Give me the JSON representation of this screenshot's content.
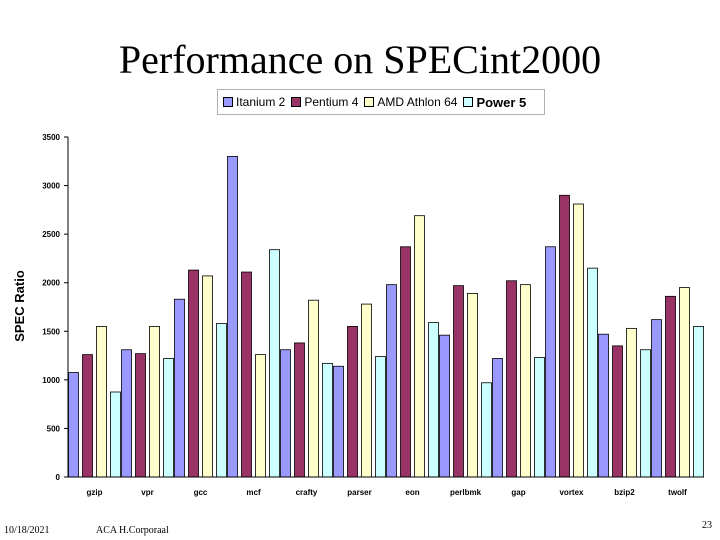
{
  "slide": {
    "title": "Performance on SPECint2000",
    "footer_date": "10/18/2021",
    "footer_author": "ACA H.Corporaal",
    "page_number": "23"
  },
  "chart_data": {
    "type": "bar",
    "ylabel": "SPEC Ratio",
    "ylim": [
      0,
      3500
    ],
    "yticks": [
      "0",
      "500",
      "1000",
      "1500",
      "2000",
      "2500",
      "3000",
      "3500"
    ],
    "grid": false,
    "legend_position": "top",
    "categories": [
      "gzip",
      "vpr",
      "gcc",
      "mcf",
      "crafty",
      "parser",
      "eon",
      "perlbmk",
      "gap",
      "vortex",
      "bzip2",
      "twolf"
    ],
    "series": [
      {
        "name": "Itanium 2",
        "color": "#9999ff",
        "values": [
          1075,
          1310,
          1830,
          3300,
          1310,
          1140,
          1980,
          1460,
          1220,
          2370,
          1470,
          1620
        ]
      },
      {
        "name": "Pentium 4",
        "color": "#993366",
        "values": [
          1260,
          1270,
          2130,
          2110,
          1380,
          1550,
          2370,
          1970,
          2020,
          2900,
          1350,
          1860
        ]
      },
      {
        "name": "AMD Athlon 64",
        "color": "#ffffcc",
        "values": [
          1550,
          1550,
          2070,
          1260,
          1820,
          1780,
          2690,
          1890,
          1980,
          2810,
          1530,
          1950
        ]
      },
      {
        "name": "Power 5",
        "color": "#ccffff",
        "values": [
          875,
          1220,
          1580,
          2340,
          1170,
          1240,
          1590,
          970,
          1230,
          2150,
          1310,
          1550
        ]
      }
    ]
  }
}
